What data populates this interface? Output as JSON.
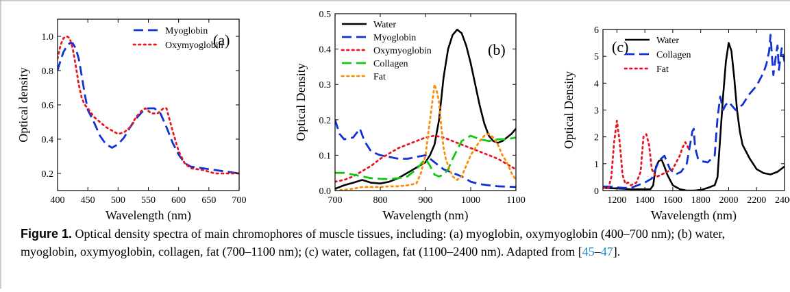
{
  "figure": {
    "caption_label": "Figure 1.",
    "caption_text": " Optical density spectra of main chromophores of muscle tissues, including: (a) myoglobin, oxymyoglobin (400–700 nm); (b) water, myoglobin, oxymyoglobin, collagen, fat (700–1100 nm); (c) water, collagen, fat (1100–2400 nm). Adapted from [",
    "caption_ref_a": "45",
    "caption_dash": "–",
    "caption_ref_b": "47",
    "caption_end": "]."
  },
  "chart_data": [
    {
      "type": "line",
      "panel_label": "(a)",
      "xlabel": "Wavelength (nm)",
      "ylabel": "Optical density",
      "xlim": [
        400,
        700
      ],
      "ylim": [
        0.1,
        1.1
      ],
      "xticks": [
        400,
        450,
        500,
        550,
        600,
        650,
        700
      ],
      "yticks": [
        0.2,
        0.4,
        0.6,
        0.8,
        1.0
      ],
      "ytick_labels": [
        "0.2",
        "0.4",
        "0.6",
        "0.8",
        "1.0"
      ],
      "legend_position": "top-right",
      "series": [
        {
          "name": "Myoglobin",
          "color": "#1030d8",
          "style": "dash",
          "x": [
            400,
            405,
            410,
            415,
            420,
            425,
            430,
            435,
            440,
            445,
            450,
            460,
            470,
            480,
            490,
            500,
            510,
            520,
            530,
            540,
            550,
            560,
            570,
            580,
            590,
            600,
            610,
            620,
            640,
            660,
            680,
            700
          ],
          "y": [
            0.8,
            0.86,
            0.91,
            0.94,
            0.96,
            0.96,
            0.93,
            0.87,
            0.77,
            0.66,
            0.57,
            0.5,
            0.42,
            0.37,
            0.35,
            0.37,
            0.41,
            0.47,
            0.52,
            0.56,
            0.58,
            0.58,
            0.55,
            0.47,
            0.38,
            0.31,
            0.26,
            0.24,
            0.23,
            0.22,
            0.21,
            0.2
          ]
        },
        {
          "name": "Oxymyoglobin",
          "color": "#e8141e",
          "style": "dot",
          "x": [
            400,
            405,
            410,
            415,
            420,
            425,
            430,
            435,
            440,
            445,
            450,
            460,
            470,
            480,
            490,
            500,
            510,
            520,
            530,
            540,
            545,
            555,
            565,
            575,
            580,
            590,
            600,
            610,
            620,
            640,
            660,
            680,
            700
          ],
          "y": [
            0.87,
            0.95,
            0.99,
            1.0,
            0.99,
            0.93,
            0.83,
            0.72,
            0.64,
            0.6,
            0.58,
            0.53,
            0.5,
            0.47,
            0.45,
            0.43,
            0.44,
            0.47,
            0.53,
            0.57,
            0.58,
            0.55,
            0.55,
            0.58,
            0.58,
            0.45,
            0.33,
            0.26,
            0.23,
            0.22,
            0.2,
            0.2,
            0.2
          ]
        }
      ]
    },
    {
      "type": "line",
      "panel_label": "(b)",
      "xlabel": "Wavelength (nm)",
      "ylabel": "Optical Density",
      "xlim": [
        700,
        1100
      ],
      "ylim": [
        0,
        0.5
      ],
      "xticks": [
        700,
        800,
        900,
        1000,
        1100
      ],
      "yticks": [
        0.0,
        0.1,
        0.2,
        0.3,
        0.4,
        0.5
      ],
      "ytick_labels": [
        "0.0",
        "0.1",
        "0.2",
        "0.3",
        "0.4",
        "0.5"
      ],
      "legend_position": "top-left",
      "series": [
        {
          "name": "Water",
          "color": "#000000",
          "style": "solid",
          "x": [
            700,
            720,
            740,
            760,
            780,
            800,
            820,
            840,
            860,
            880,
            900,
            910,
            920,
            930,
            940,
            950,
            960,
            970,
            980,
            990,
            1000,
            1010,
            1020,
            1030,
            1040,
            1050,
            1060,
            1070,
            1080,
            1090,
            1100
          ],
          "y": [
            0.005,
            0.015,
            0.022,
            0.03,
            0.022,
            0.02,
            0.025,
            0.035,
            0.05,
            0.065,
            0.08,
            0.1,
            0.13,
            0.2,
            0.32,
            0.4,
            0.44,
            0.455,
            0.445,
            0.41,
            0.36,
            0.3,
            0.24,
            0.19,
            0.155,
            0.14,
            0.135,
            0.14,
            0.15,
            0.16,
            0.175
          ]
        },
        {
          "name": "Myoglobin",
          "color": "#1030d8",
          "style": "dash",
          "x": [
            700,
            710,
            720,
            740,
            755,
            765,
            780,
            800,
            820,
            840,
            860,
            880,
            900,
            920,
            940,
            960,
            980,
            1000,
            1020,
            1040,
            1060,
            1080,
            1100
          ],
          "y": [
            0.2,
            0.16,
            0.145,
            0.15,
            0.175,
            0.14,
            0.11,
            0.1,
            0.095,
            0.09,
            0.09,
            0.095,
            0.1,
            0.08,
            0.06,
            0.05,
            0.04,
            0.025,
            0.018,
            0.015,
            0.012,
            0.011,
            0.01
          ]
        },
        {
          "name": "Oxymyoglobin",
          "color": "#e8141e",
          "style": "dot",
          "x": [
            700,
            720,
            740,
            760,
            780,
            800,
            820,
            840,
            860,
            880,
            900,
            920,
            940,
            960,
            980,
            1000,
            1020,
            1040,
            1060,
            1080,
            1100
          ],
          "y": [
            0.025,
            0.03,
            0.04,
            0.055,
            0.07,
            0.09,
            0.105,
            0.12,
            0.13,
            0.14,
            0.15,
            0.155,
            0.15,
            0.14,
            0.13,
            0.12,
            0.11,
            0.1,
            0.09,
            0.075,
            0.06
          ]
        },
        {
          "name": "Collagen",
          "color": "#10c810",
          "style": "dash",
          "x": [
            700,
            720,
            740,
            760,
            780,
            800,
            820,
            840,
            860,
            880,
            900,
            910,
            920,
            930,
            940,
            950,
            960,
            980,
            1000,
            1020,
            1040,
            1060,
            1080,
            1100
          ],
          "y": [
            0.05,
            0.05,
            0.045,
            0.04,
            0.035,
            0.033,
            0.032,
            0.035,
            0.04,
            0.06,
            0.09,
            0.07,
            0.045,
            0.04,
            0.045,
            0.06,
            0.09,
            0.14,
            0.155,
            0.145,
            0.14,
            0.145,
            0.145,
            0.15
          ]
        },
        {
          "name": "Fat",
          "color": "#ff8c00",
          "style": "dot",
          "x": [
            700,
            720,
            740,
            760,
            780,
            800,
            820,
            840,
            860,
            880,
            890,
            900,
            910,
            915,
            920,
            925,
            930,
            935,
            940,
            945,
            950,
            960,
            970,
            980,
            990,
            1000,
            1010,
            1020,
            1030,
            1040,
            1050,
            1060,
            1070,
            1080,
            1090,
            1100
          ],
          "y": [
            0.0,
            0.002,
            0.005,
            0.01,
            0.01,
            0.01,
            0.012,
            0.012,
            0.015,
            0.02,
            0.05,
            0.1,
            0.2,
            0.25,
            0.3,
            0.28,
            0.25,
            0.18,
            0.12,
            0.09,
            0.07,
            0.04,
            0.03,
            0.04,
            0.07,
            0.1,
            0.12,
            0.14,
            0.155,
            0.16,
            0.15,
            0.13,
            0.1,
            0.08,
            0.05,
            0.03
          ]
        }
      ]
    },
    {
      "type": "line",
      "panel_label": "(c)",
      "xlabel": "Wavelength (nm)",
      "ylabel": "Optical Density",
      "xlim": [
        1100,
        2400
      ],
      "ylim": [
        0,
        6
      ],
      "xticks": [
        1200,
        1400,
        1600,
        1800,
        2000,
        2200,
        2400
      ],
      "yticks": [
        0,
        1,
        2,
        3,
        4,
        5,
        6
      ],
      "ytick_labels": [
        "0",
        "1",
        "2",
        "3",
        "4",
        "5",
        "6"
      ],
      "legend_position": "top-left",
      "series": [
        {
          "name": "Water",
          "color": "#000000",
          "style": "solid",
          "x": [
            1100,
            1200,
            1300,
            1400,
            1440,
            1460,
            1470,
            1480,
            1500,
            1520,
            1540,
            1560,
            1600,
            1650,
            1700,
            1750,
            1800,
            1850,
            1900,
            1920,
            1940,
            1960,
            1980,
            2000,
            2020,
            2040,
            2060,
            2080,
            2100,
            2150,
            2200,
            2250,
            2300,
            2350,
            2400
          ],
          "y": [
            0.1,
            0.08,
            0.05,
            0.05,
            0.05,
            0.2,
            0.6,
            0.9,
            1.1,
            1.15,
            0.9,
            0.6,
            0.2,
            0.05,
            0.0,
            0.0,
            0.02,
            0.1,
            0.2,
            0.5,
            2.0,
            3.5,
            4.8,
            5.5,
            5.2,
            4.2,
            3.0,
            2.2,
            1.7,
            1.2,
            0.8,
            0.65,
            0.6,
            0.7,
            0.9
          ]
        },
        {
          "name": "Collagen",
          "color": "#1030d8",
          "style": "dash",
          "x": [
            1100,
            1150,
            1200,
            1250,
            1300,
            1350,
            1400,
            1450,
            1500,
            1540,
            1580,
            1620,
            1660,
            1700,
            1720,
            1740,
            1750,
            1760,
            1780,
            1800,
            1850,
            1900,
            1920,
            1940,
            1960,
            1980,
            2000,
            2050,
            2100,
            2150,
            2200,
            2250,
            2270,
            2290,
            2300,
            2310,
            2320,
            2340,
            2350,
            2360,
            2380,
            2400
          ],
          "y": [
            0.15,
            0.15,
            0.12,
            0.1,
            0.1,
            0.2,
            0.3,
            0.45,
            1.1,
            1.3,
            0.8,
            0.6,
            0.7,
            1.0,
            1.6,
            2.2,
            2.3,
            1.6,
            1.2,
            1.1,
            1.05,
            1.3,
            2.7,
            3.5,
            3.0,
            3.2,
            3.3,
            3.0,
            3.2,
            3.6,
            3.9,
            4.4,
            4.7,
            5.2,
            5.8,
            5.0,
            4.3,
            5.1,
            5.4,
            4.5,
            5.3,
            4.8
          ]
        },
        {
          "name": "Fat",
          "color": "#e8141e",
          "style": "dot",
          "x": [
            1100,
            1140,
            1160,
            1180,
            1200,
            1220,
            1240,
            1260,
            1280,
            1300,
            1340,
            1370,
            1390,
            1410,
            1430,
            1450,
            1480,
            1520,
            1560,
            1600,
            1620,
            1650,
            1670,
            1690,
            1720
          ],
          "y": [
            0.1,
            0.1,
            0.5,
            1.8,
            2.6,
            1.8,
            0.6,
            0.25,
            0.3,
            0.2,
            0.3,
            0.7,
            2.0,
            2.1,
            1.7,
            0.8,
            0.5,
            0.6,
            0.7,
            0.8,
            1.0,
            1.3,
            1.6,
            1.8,
            1.5
          ]
        }
      ]
    }
  ]
}
